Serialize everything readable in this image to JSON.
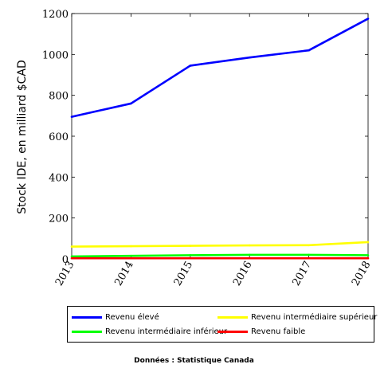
{
  "chart_data": {
    "type": "line",
    "x": [
      2013,
      2014,
      2015,
      2016,
      2017,
      2018
    ],
    "tick_labels_x": [
      "2013",
      "2014",
      "2015",
      "2016",
      "2017",
      "2018"
    ],
    "ticks_y": [
      0,
      200,
      400,
      600,
      800,
      1000,
      1200
    ],
    "tick_labels_y": [
      "0",
      "200",
      "400",
      "600",
      "800",
      "1000",
      "1200"
    ],
    "xlim": [
      2013,
      2018
    ],
    "ylim": [
      0,
      1200
    ],
    "xlabel": "",
    "ylabel": "Stock IDE, en milliard $CAD",
    "grid": false,
    "legend_position": "bottom",
    "series": [
      {
        "name": "Revenu élevé",
        "color": "#0000ff",
        "values": [
          695,
          760,
          945,
          985,
          1020,
          1175
        ]
      },
      {
        "name": "Revenu intermédiaire supérieur",
        "color": "#ffff00",
        "values": [
          60,
          62,
          64,
          66,
          67,
          82
        ]
      },
      {
        "name": "Revenu intermédiaire inférieur",
        "color": "#00ff00",
        "values": [
          12,
          15,
          18,
          20,
          20,
          18
        ]
      },
      {
        "name": "Revenu faible",
        "color": "#ff0000",
        "values": [
          3,
          3,
          3,
          3,
          3,
          3
        ]
      }
    ]
  },
  "source_note": "Données : Statistique Canada"
}
